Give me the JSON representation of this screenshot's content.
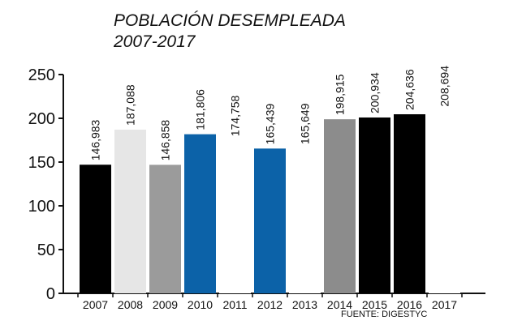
{
  "chart_data": {
    "type": "bar",
    "title": "POBLACIÓN DESEMPLEADA",
    "subtitle": "2007-2017",
    "categories": [
      "2007",
      "2008",
      "2009",
      "2010",
      "2011",
      "2012",
      "2013",
      "2014",
      "2015",
      "2016",
      "2017"
    ],
    "values": [
      146983,
      187088,
      146858,
      181806,
      174758,
      165439,
      165649,
      198915,
      200934,
      204636,
      208694
    ],
    "data_labels": [
      "146,983",
      "187,088",
      "146,858",
      "181,806",
      "174,758",
      "165,439",
      "165,649",
      "198,915",
      "200,934",
      "204,636",
      "208,694"
    ],
    "bar_colors": [
      "#000000",
      "#e6e6e6",
      "#9b9b9b",
      "#0c62a8",
      "#ffffff",
      "#0c62a8",
      "#ffffff",
      "#8c8c8c",
      "#000000",
      "#000000",
      "#ffffff"
    ],
    "yticks": [
      "0",
      "50",
      "100",
      "150",
      "200",
      "250"
    ],
    "ytick_values": [
      0,
      50000,
      100000,
      150000,
      200000,
      250000
    ],
    "ylim": [
      0,
      250000
    ],
    "xlabel": "",
    "ylabel": "",
    "grid": false,
    "source": "FUENTE: DIGESTYC"
  }
}
